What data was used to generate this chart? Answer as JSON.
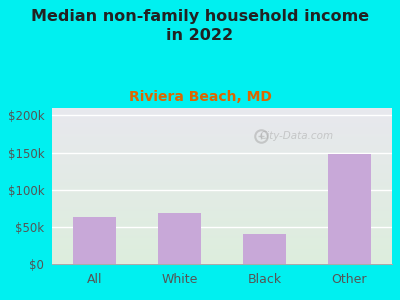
{
  "title": "Median non-family household income\nin 2022",
  "subtitle": "Riviera Beach, MD",
  "categories": [
    "All",
    "White",
    "Black",
    "Other"
  ],
  "values": [
    63000,
    68000,
    40000,
    148000
  ],
  "bar_color": "#c8a8d8",
  "bg_color": "#00f0f0",
  "plot_bg_top": "#e8e8ee",
  "plot_bg_bottom": "#ddeedd",
  "title_fontsize": 11.5,
  "subtitle_fontsize": 10,
  "subtitle_color": "#dd6600",
  "tick_color": "#555555",
  "ytick_label_color": "#555555",
  "xtick_label_color": "#555555",
  "ylim": [
    0,
    210000
  ],
  "yticks": [
    0,
    50000,
    100000,
    150000,
    200000
  ],
  "ytick_labels": [
    "$0",
    "$50k",
    "$100k",
    "$150k",
    "$200k"
  ],
  "watermark": "City-Data.com",
  "watermark_color": "#aaaaaa",
  "watermark_alpha": 0.55,
  "grid_color": "#cccccc",
  "spine_color": "#aaaaaa"
}
